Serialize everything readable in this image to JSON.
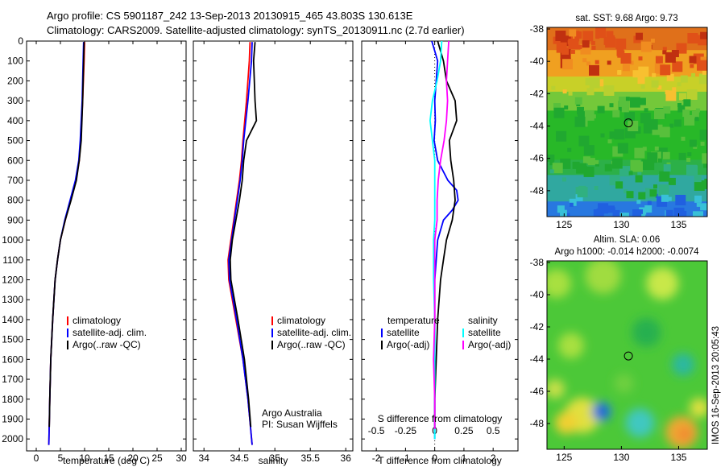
{
  "header": {
    "line1": "Argo profile: CS 5901187_242 13-Sep-2013 20130915_465 43.803S 130.613E",
    "line2": "Climatology: CARS2009. Satellite-adjusted climatology: synTS_20130911.nc (2.7d earlier)"
  },
  "colors": {
    "red": "#ff0000",
    "blue": "#0000ff",
    "black": "#000000",
    "cyan": "#00ffff",
    "magenta": "#ff00ff"
  },
  "chart_data": [
    {
      "type": "line",
      "xlabel": "temperature (deg C)",
      "xlim": [
        -2,
        31
      ],
      "ylim": [
        2060,
        0
      ],
      "xticks": [
        0,
        5,
        10,
        15,
        20,
        25,
        30
      ],
      "yticks": [
        0,
        100,
        200,
        300,
        400,
        500,
        600,
        700,
        800,
        900,
        1000,
        1100,
        1200,
        1300,
        1400,
        1500,
        1600,
        1700,
        1800,
        1900,
        2000
      ],
      "legend": [
        "climatology",
        "satellite-adj. clim.",
        "Argo(..raw -QC)"
      ],
      "series": [
        {
          "name": "climatology",
          "color": "red",
          "depth": [
            5,
            100,
            300,
            500,
            600,
            700,
            800,
            900,
            1000,
            1100,
            1200,
            1400,
            1600,
            1800,
            2030
          ],
          "values": [
            10.0,
            9.9,
            9.6,
            9.2,
            8.9,
            8.2,
            7.1,
            6.0,
            5.0,
            4.4,
            3.9,
            3.4,
            3.0,
            2.8,
            2.6
          ]
        },
        {
          "name": "satellite-adj. clim.",
          "color": "blue",
          "depth": [
            5,
            100,
            300,
            500,
            600,
            700,
            800,
            900,
            1000,
            1100,
            1200,
            1400,
            1600,
            1800,
            2030
          ],
          "values": [
            9.8,
            9.7,
            9.5,
            9.1,
            8.8,
            8.1,
            7.0,
            5.9,
            5.0,
            4.4,
            3.9,
            3.4,
            3.0,
            2.8,
            2.6
          ]
        },
        {
          "name": "Argo(..raw -QC)",
          "color": "black",
          "depth": [
            5,
            100,
            300,
            500,
            600,
            700,
            800,
            900,
            1000,
            1100,
            1200,
            1400,
            1600,
            1800,
            1940
          ],
          "values": [
            9.9,
            9.8,
            9.6,
            9.3,
            8.9,
            8.3,
            7.2,
            6.0,
            5.0,
            4.4,
            3.9,
            3.4,
            3.0,
            2.8,
            2.7
          ]
        }
      ]
    },
    {
      "type": "line",
      "xlabel": "salinity",
      "xlim": [
        33.85,
        36.1
      ],
      "ylim": [
        2060,
        0
      ],
      "xticks": [
        34,
        34.5,
        35,
        35.5,
        36
      ],
      "legend": [
        "climatology",
        "satellite-adj. clim.",
        "Argo(..raw -QC)"
      ],
      "annotation": [
        "Argo Australia",
        "PI: Susan Wijffels"
      ],
      "series": [
        {
          "name": "climatology",
          "color": "red",
          "depth": [
            5,
            100,
            300,
            500,
            600,
            700,
            800,
            900,
            1000,
            1100,
            1200,
            1400,
            1600,
            1800,
            2030
          ],
          "values": [
            34.65,
            34.64,
            34.6,
            34.55,
            34.53,
            34.5,
            34.46,
            34.42,
            34.38,
            34.34,
            34.35,
            34.45,
            34.55,
            34.62,
            34.68
          ]
        },
        {
          "name": "satellite-adj. clim.",
          "color": "blue",
          "depth": [
            5,
            100,
            300,
            500,
            600,
            700,
            800,
            900,
            1000,
            1100,
            1200,
            1400,
            1600,
            1800,
            2030
          ],
          "values": [
            34.68,
            34.67,
            34.62,
            34.56,
            34.54,
            34.51,
            34.47,
            34.43,
            34.39,
            34.35,
            34.36,
            34.46,
            34.55,
            34.62,
            34.68
          ]
        },
        {
          "name": "Argo(..raw -QC)",
          "color": "black",
          "depth": [
            5,
            100,
            300,
            400,
            500,
            600,
            700,
            800,
            900,
            1000,
            1100,
            1200,
            1400,
            1600,
            1800,
            1940
          ],
          "values": [
            34.72,
            34.7,
            34.72,
            34.74,
            34.6,
            34.56,
            34.54,
            34.5,
            34.45,
            34.4,
            34.37,
            34.38,
            34.48,
            34.57,
            34.63,
            34.66
          ]
        }
      ]
    },
    {
      "type": "line",
      "xlabel": "T difference from climatology",
      "xlabel2": "S difference from climatology",
      "xlim": [
        -2.5,
        2.85
      ],
      "ylim": [
        2060,
        0
      ],
      "xticks": [
        -2,
        -1,
        0,
        1,
        2
      ],
      "xticks2": [
        -0.5,
        -0.25,
        0,
        0.25,
        0.5
      ],
      "legend_titles": [
        "temperature",
        "salinity"
      ],
      "legend": [
        "satellite",
        "Argo(-adj)",
        "satellite",
        "Argo(-adj)"
      ],
      "series": [
        {
          "name": "temperature satellite",
          "color": "blue",
          "depth": [
            0,
            50,
            100,
            200,
            300,
            400,
            500,
            600,
            700,
            750,
            800,
            850,
            900,
            1000,
            1200,
            1400,
            1600,
            1800,
            2000
          ],
          "values": [
            -0.1,
            0.0,
            0.1,
            0.05,
            0.0,
            0.02,
            -0.02,
            0.1,
            0.45,
            0.75,
            0.8,
            0.6,
            0.3,
            0.1,
            0.0,
            0.0,
            0.0,
            0.0,
            0.0
          ]
        },
        {
          "name": "temperature Argo(-adj)",
          "color": "black",
          "depth": [
            0,
            100,
            200,
            300,
            400,
            500,
            600,
            700,
            800,
            900,
            1000,
            1100,
            1200,
            1400,
            1600,
            1800,
            1950
          ],
          "values": [
            0.1,
            0.3,
            0.4,
            0.7,
            0.75,
            0.5,
            0.55,
            0.65,
            0.7,
            0.6,
            0.4,
            0.3,
            0.2,
            0.1,
            0.05,
            0.0,
            0.0
          ]
        },
        {
          "name": "salinity satellite",
          "color": "cyan",
          "depth": [
            0,
            100,
            200,
            300,
            400,
            500,
            600,
            700,
            800,
            900,
            1000,
            1200,
            1400,
            1600,
            1800,
            2000
          ],
          "values": [
            0.06,
            0.05,
            0.02,
            -0.02,
            -0.04,
            -0.02,
            0.0,
            0.0,
            0.0,
            0.0,
            -0.01,
            -0.01,
            0.0,
            0.0,
            0.0,
            0.0
          ]
        },
        {
          "name": "salinity Argo(-adj)",
          "color": "magenta",
          "depth": [
            0,
            100,
            200,
            300,
            400,
            500,
            600,
            700,
            800,
            900,
            1000,
            1200,
            1400,
            1600,
            1800,
            1950
          ],
          "values": [
            0.12,
            0.11,
            0.1,
            0.11,
            0.1,
            0.08,
            0.05,
            0.03,
            0.02,
            0.02,
            0.0,
            0.0,
            0.0,
            -0.01,
            0.0,
            0.0
          ]
        }
      ]
    },
    {
      "type": "heatmap",
      "title": "sat. SST: 9.68 Argo: 9.73",
      "xlim": [
        123.5,
        137.5
      ],
      "ylim": [
        -49.6,
        -37.9
      ],
      "xticks": [
        125,
        130,
        135
      ],
      "yticks": [
        -38,
        -40,
        -42,
        -44,
        -46,
        -48
      ],
      "marker": {
        "lon": 130.613,
        "lat": -43.803
      }
    },
    {
      "type": "heatmap",
      "title": "Altim. SLA: 0.06",
      "subtitle": "Argo h1000: -0.014 h2000: -0.0074",
      "xlim": [
        123.5,
        137.5
      ],
      "ylim": [
        -49.6,
        -37.9
      ],
      "xticks": [
        125,
        130,
        135
      ],
      "yticks": [
        -38,
        -40,
        -42,
        -44,
        -46,
        -48
      ],
      "marker": {
        "lon": 130.613,
        "lat": -43.803
      }
    }
  ],
  "side_label": "IMOS 16-Sep-2013 20:05:43"
}
